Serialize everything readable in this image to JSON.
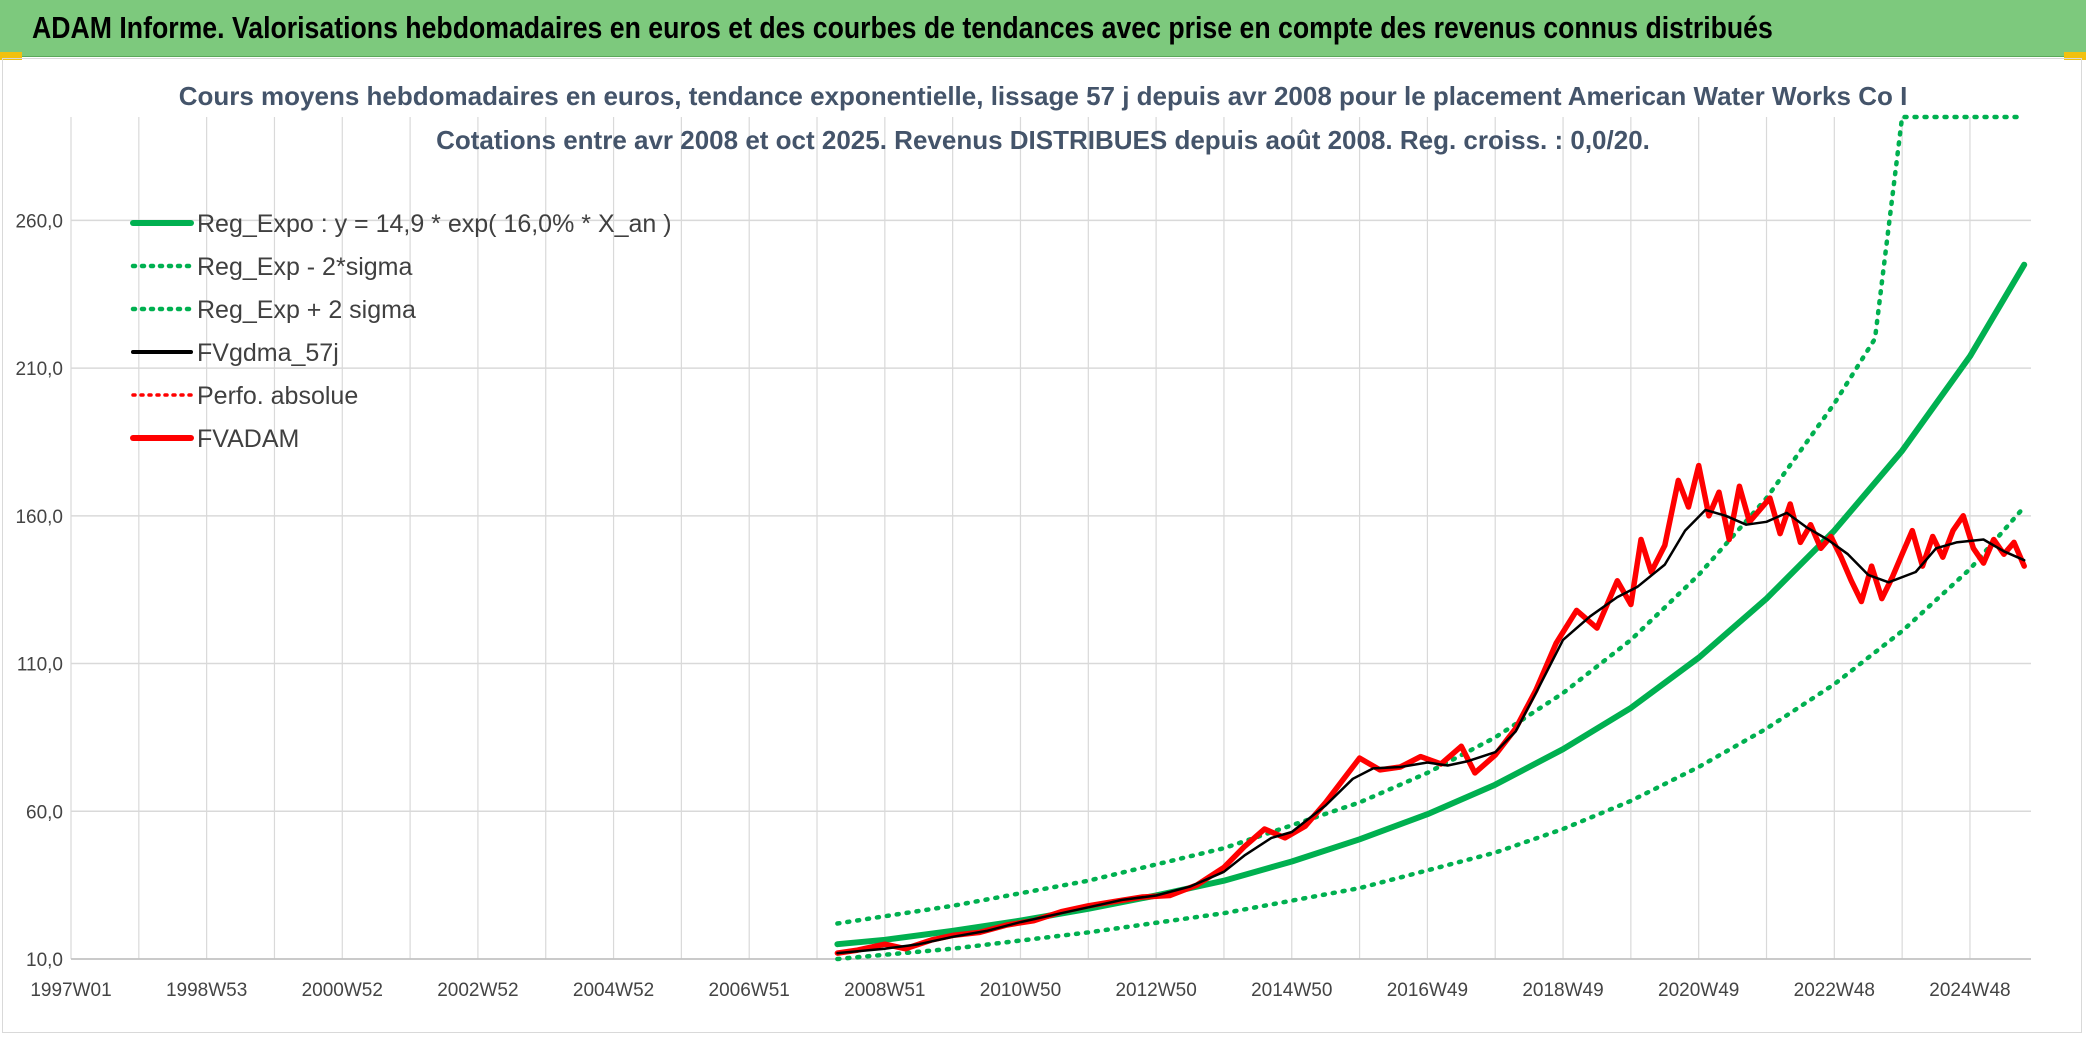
{
  "banner": {
    "title": "ADAM Informe. Valorisations hebdomadaires en euros et des courbes de tendances avec prise en compte des revenus connus distribués"
  },
  "colors": {
    "banner_bg": "#7dc97d",
    "reg_green": "#00b050",
    "fv_black": "#000000",
    "red": "#ff0000",
    "grid": "#d9d9d9",
    "title": "#44546a"
  },
  "chart_data": {
    "type": "line",
    "title_line1": "Cours moyens hebdomadaires en euros, tendance exponentielle, lissage 57 j depuis avr 2008 pour le placement American Water Works Co I",
    "title_line2": "Cotations entre avr 2008 et oct 2025. Revenus DISTRIBUES depuis août 2008. Reg. croiss. : 0,0/20.",
    "x_tick_labels": [
      "1997W01",
      "1998W53",
      "2000W52",
      "2002W52",
      "2004W52",
      "2006W51",
      "2008W51",
      "2010W50",
      "2012W50",
      "2014W50",
      "2016W49",
      "2018W49",
      "2020W49",
      "2022W48",
      "2024W48"
    ],
    "x_tick_years": [
      1997.0,
      1999.0,
      2001.0,
      2003.0,
      2005.0,
      2007.0,
      2009.0,
      2011.0,
      2013.0,
      2015.0,
      2017.0,
      2019.0,
      2021.0,
      2023.0,
      2025.0
    ],
    "xlim": [
      1997.0,
      2025.9
    ],
    "y_tick_labels": [
      "10,0",
      "60,0",
      "110,0",
      "160,0",
      "210,0",
      "260,0"
    ],
    "y_ticks": [
      10,
      60,
      110,
      160,
      210,
      260
    ],
    "ylim": [
      10,
      295
    ],
    "legend": [
      {
        "name": "Reg_Expo : y = 14,9 * exp( 16,0% *  X_an )",
        "style": "solid-green"
      },
      {
        "name": "Reg_Exp - 2*sigma",
        "style": "dotted-green"
      },
      {
        "name": "Reg_Exp + 2 sigma",
        "style": "dotted-green"
      },
      {
        "name": "FVgdma_57j",
        "style": "solid-black"
      },
      {
        "name": "Perfo. absolue",
        "style": "dotted-red"
      },
      {
        "name": "FVADAM",
        "style": "solid-red"
      }
    ],
    "series": [
      {
        "name": "Reg_Expo",
        "x": [
          2008.3,
          2009.0,
          2010.0,
          2011.0,
          2012.0,
          2013.0,
          2014.0,
          2015.0,
          2016.0,
          2017.0,
          2018.0,
          2019.0,
          2020.0,
          2021.0,
          2022.0,
          2023.0,
          2024.0,
          2025.0,
          2025.8
        ],
        "values": [
          15.0,
          16.5,
          19.5,
          23.0,
          27.0,
          31.5,
          36.5,
          43.0,
          50.5,
          59.0,
          69.0,
          81.0,
          95.0,
          112.0,
          132.0,
          155.0,
          182.0,
          214.0,
          245.0
        ]
      },
      {
        "name": "Reg_Exp - 2*sigma",
        "x": [
          2008.3,
          2010.0,
          2012.0,
          2014.0,
          2016.0,
          2018.0,
          2019.0,
          2020.0,
          2021.0,
          2022.0,
          2023.0,
          2024.0,
          2025.0,
          2025.8
        ],
        "values": [
          10.0,
          13.5,
          19.0,
          25.5,
          34.0,
          46.0,
          54.0,
          63.5,
          75.0,
          88.0,
          103.0,
          121.0,
          142.0,
          163.0
        ]
      },
      {
        "name": "Reg_Exp + 2 sigma",
        "x": [
          2008.3,
          2010.0,
          2012.0,
          2014.0,
          2016.0,
          2017.0,
          2018.0,
          2019.0,
          2020.0,
          2021.0,
          2022.0,
          2023.0,
          2023.6,
          2024.0,
          2025.0,
          2025.8
        ],
        "values": [
          22.0,
          28.0,
          36.5,
          47.5,
          63.0,
          73.0,
          85.0,
          100.0,
          118.0,
          140.0,
          166.0,
          198.0,
          220.0,
          295.0,
          295.0,
          295.0
        ]
      },
      {
        "name": "FVgdma_57j",
        "x": [
          2008.3,
          2009.0,
          2009.5,
          2010.0,
          2010.5,
          2011.0,
          2011.5,
          2012.0,
          2012.5,
          2013.0,
          2013.5,
          2014.0,
          2014.3,
          2014.7,
          2015.0,
          2015.5,
          2015.9,
          2016.2,
          2016.6,
          2017.0,
          2017.3,
          2017.6,
          2018.0,
          2018.3,
          2018.6,
          2019.0,
          2019.4,
          2019.8,
          2020.1,
          2020.5,
          2020.8,
          2021.1,
          2021.4,
          2021.7,
          2022.0,
          2022.3,
          2022.6,
          2022.9,
          2023.2,
          2023.5,
          2023.8,
          2024.2,
          2024.5,
          2024.8,
          2025.2,
          2025.5,
          2025.8
        ],
        "values": [
          12.0,
          13.5,
          15.0,
          17.5,
          19.5,
          22.5,
          25.0,
          27.5,
          30.0,
          31.5,
          34.5,
          39.5,
          45.0,
          51.0,
          53.0,
          62.0,
          71.0,
          74.5,
          75.0,
          76.5,
          75.5,
          77.0,
          80.0,
          87.0,
          100.0,
          118.0,
          126.0,
          132.5,
          136.0,
          143.5,
          155.0,
          162.0,
          160.0,
          157.0,
          158.0,
          161.0,
          156.0,
          152.0,
          147.0,
          140.0,
          137.5,
          141.0,
          149.0,
          151.0,
          152.0,
          148.0,
          145.0
        ]
      },
      {
        "name": "FVADAM",
        "x": [
          2008.3,
          2008.6,
          2009.0,
          2009.3,
          2009.7,
          2010.0,
          2010.4,
          2010.8,
          2011.2,
          2011.6,
          2012.0,
          2012.4,
          2012.8,
          2013.2,
          2013.6,
          2014.0,
          2014.3,
          2014.6,
          2014.9,
          2015.2,
          2015.5,
          2015.8,
          2016.0,
          2016.3,
          2016.6,
          2016.9,
          2017.2,
          2017.5,
          2017.7,
          2018.0,
          2018.3,
          2018.6,
          2018.9,
          2019.2,
          2019.5,
          2019.8,
          2020.0,
          2020.15,
          2020.3,
          2020.5,
          2020.7,
          2020.85,
          2021.0,
          2021.15,
          2021.3,
          2021.45,
          2021.6,
          2021.75,
          2021.9,
          2022.05,
          2022.2,
          2022.35,
          2022.5,
          2022.65,
          2022.8,
          2022.95,
          2023.1,
          2023.25,
          2023.4,
          2023.55,
          2023.7,
          2023.85,
          2024.0,
          2024.15,
          2024.3,
          2024.45,
          2024.6,
          2024.75,
          2024.9,
          2025.05,
          2025.2,
          2025.35,
          2025.5,
          2025.65,
          2025.8
        ],
        "values": [
          12.0,
          13.0,
          15.0,
          13.5,
          16.5,
          18.0,
          19.0,
          21.5,
          23.0,
          26.0,
          28.0,
          29.5,
          31.0,
          31.5,
          35.0,
          41.0,
          48.0,
          54.0,
          51.0,
          55.0,
          63.0,
          72.0,
          78.0,
          74.0,
          75.0,
          78.5,
          76.0,
          82.0,
          73.0,
          79.0,
          88.0,
          101.0,
          117.0,
          128.0,
          122.0,
          138.0,
          130.0,
          152.0,
          141.0,
          150.0,
          172.0,
          163.0,
          177.0,
          160.0,
          168.0,
          152.0,
          170.0,
          158.0,
          162.0,
          166.0,
          154.0,
          164.0,
          151.0,
          157.0,
          149.0,
          153.0,
          146.0,
          138.0,
          131.0,
          143.0,
          132.0,
          139.0,
          147.0,
          155.0,
          143.0,
          153.0,
          146.0,
          155.0,
          160.0,
          149.0,
          144.0,
          152.0,
          147.0,
          151.0,
          143.0
        ]
      }
    ]
  }
}
